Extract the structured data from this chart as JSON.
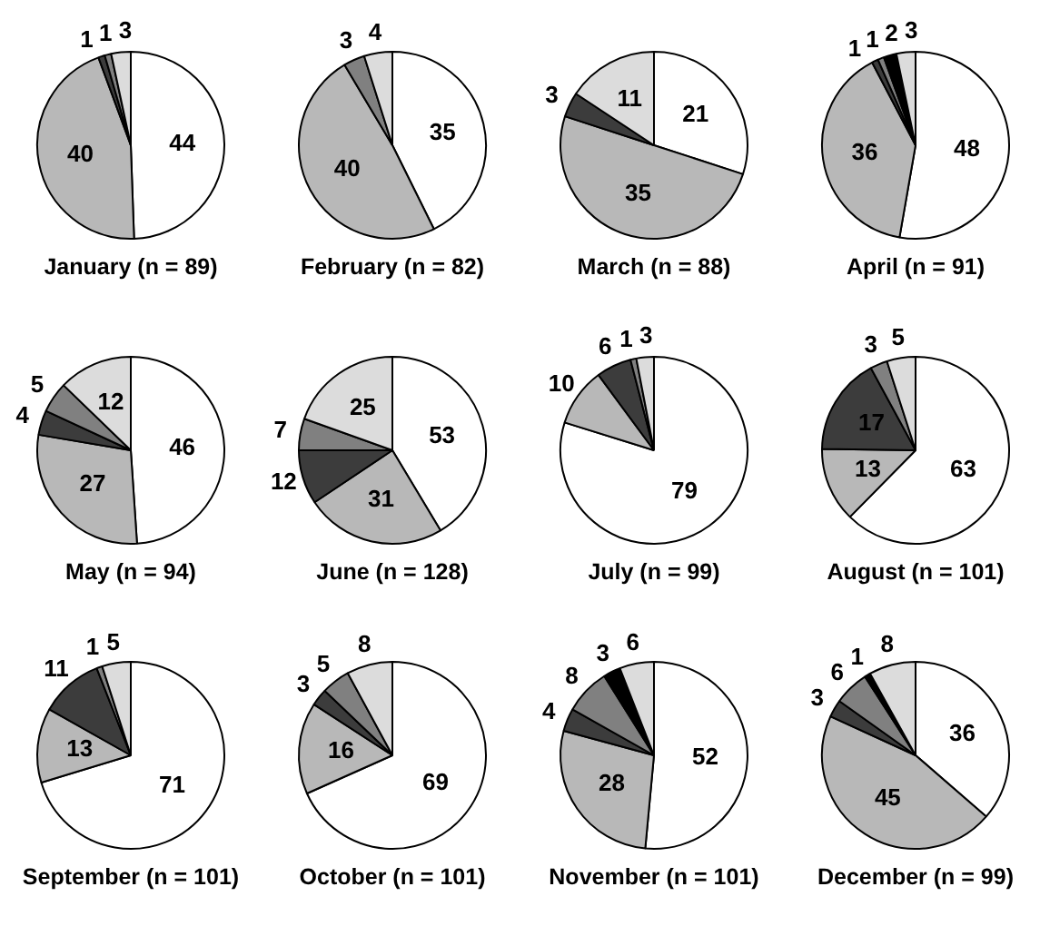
{
  "chart_data": [
    {
      "type": "pie",
      "title": "January (n = 89)",
      "categories": [
        null,
        null,
        null,
        null,
        null
      ],
      "values": [
        44,
        40,
        1,
        1,
        3
      ],
      "colors": [
        "#ffffff",
        "#b8b8b8",
        "#3c3c3c",
        "#808080",
        "#dcdcdc"
      ],
      "data_labels": true
    },
    {
      "type": "pie",
      "title": "February (n = 82)",
      "categories": [
        null,
        null,
        null,
        null
      ],
      "values": [
        35,
        40,
        3,
        4
      ],
      "colors": [
        "#ffffff",
        "#b8b8b8",
        "#808080",
        "#dcdcdc"
      ],
      "data_labels": true
    },
    {
      "type": "pie",
      "title": "March (n = 88)",
      "categories": [
        null,
        null,
        null,
        null
      ],
      "values": [
        21,
        35,
        3,
        11
      ],
      "colors": [
        "#ffffff",
        "#b8b8b8",
        "#3c3c3c",
        "#dcdcdc"
      ],
      "data_labels": true
    },
    {
      "type": "pie",
      "title": "April (n = 91)",
      "categories": [
        null,
        null,
        null,
        null,
        null,
        null
      ],
      "values": [
        48,
        36,
        1,
        1,
        2,
        3
      ],
      "colors": [
        "#ffffff",
        "#b8b8b8",
        "#3c3c3c",
        "#808080",
        "#000000",
        "#dcdcdc"
      ],
      "data_labels": true
    },
    {
      "type": "pie",
      "title": "May (n = 94)",
      "categories": [
        null,
        null,
        null,
        null,
        null
      ],
      "values": [
        46,
        27,
        4,
        5,
        12
      ],
      "colors": [
        "#ffffff",
        "#b8b8b8",
        "#3c3c3c",
        "#808080",
        "#dcdcdc"
      ],
      "data_labels": true
    },
    {
      "type": "pie",
      "title": "June (n = 128)",
      "categories": [
        null,
        null,
        null,
        null,
        null
      ],
      "values": [
        53,
        31,
        12,
        7,
        25
      ],
      "colors": [
        "#ffffff",
        "#b8b8b8",
        "#3c3c3c",
        "#808080",
        "#dcdcdc"
      ],
      "data_labels": true
    },
    {
      "type": "pie",
      "title": "July (n = 99)",
      "categories": [
        null,
        null,
        null,
        null,
        null
      ],
      "values": [
        79,
        10,
        6,
        1,
        3
      ],
      "colors": [
        "#ffffff",
        "#b8b8b8",
        "#3c3c3c",
        "#808080",
        "#dcdcdc"
      ],
      "data_labels": true
    },
    {
      "type": "pie",
      "title": "August (n = 101)",
      "categories": [
        null,
        null,
        null,
        null,
        null
      ],
      "values": [
        63,
        13,
        17,
        3,
        5
      ],
      "colors": [
        "#ffffff",
        "#b8b8b8",
        "#3c3c3c",
        "#808080",
        "#dcdcdc"
      ],
      "data_labels": true
    },
    {
      "type": "pie",
      "title": "September (n = 101)",
      "categories": [
        null,
        null,
        null,
        null,
        null
      ],
      "values": [
        71,
        13,
        11,
        1,
        5
      ],
      "colors": [
        "#ffffff",
        "#b8b8b8",
        "#3c3c3c",
        "#808080",
        "#dcdcdc"
      ],
      "data_labels": true
    },
    {
      "type": "pie",
      "title": "October (n = 101)",
      "categories": [
        null,
        null,
        null,
        null,
        null
      ],
      "values": [
        69,
        16,
        3,
        5,
        8
      ],
      "colors": [
        "#ffffff",
        "#b8b8b8",
        "#3c3c3c",
        "#808080",
        "#dcdcdc"
      ],
      "data_labels": true
    },
    {
      "type": "pie",
      "title": "November (n = 101)",
      "categories": [
        null,
        null,
        null,
        null,
        null,
        null
      ],
      "values": [
        52,
        28,
        4,
        8,
        3,
        6
      ],
      "colors": [
        "#ffffff",
        "#b8b8b8",
        "#3c3c3c",
        "#808080",
        "#000000",
        "#dcdcdc"
      ],
      "data_labels": true
    },
    {
      "type": "pie",
      "title": "December (n = 99)",
      "categories": [
        null,
        null,
        null,
        null,
        null,
        null
      ],
      "values": [
        36,
        45,
        3,
        6,
        1,
        8
      ],
      "colors": [
        "#ffffff",
        "#b8b8b8",
        "#3c3c3c",
        "#808080",
        "#000000",
        "#dcdcdc"
      ],
      "data_labels": true
    }
  ]
}
